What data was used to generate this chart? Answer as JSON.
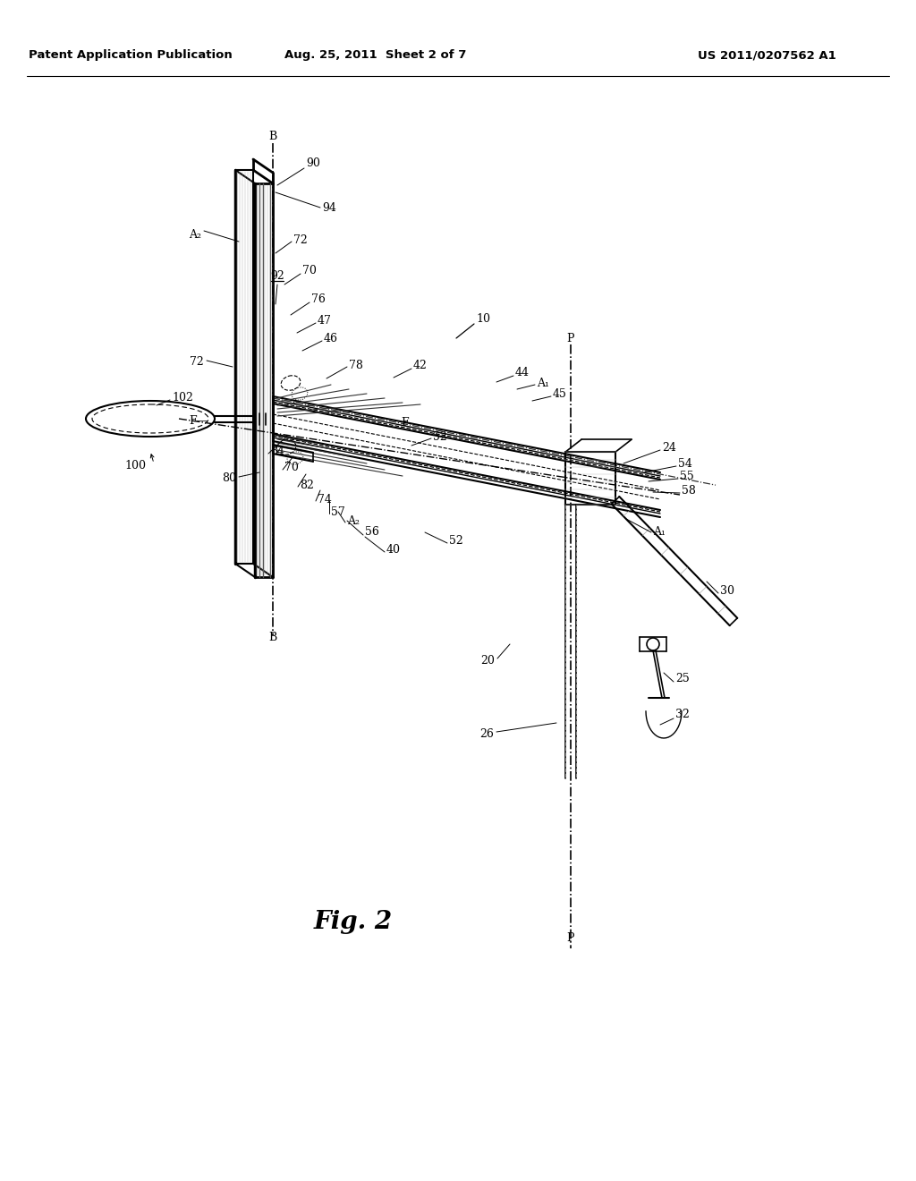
{
  "title_left": "Patent Application Publication",
  "title_center": "Aug. 25, 2011  Sheet 2 of 7",
  "title_right": "US 2011/0207562 A1",
  "fig_label": "Fig. 2",
  "background": "#ffffff"
}
